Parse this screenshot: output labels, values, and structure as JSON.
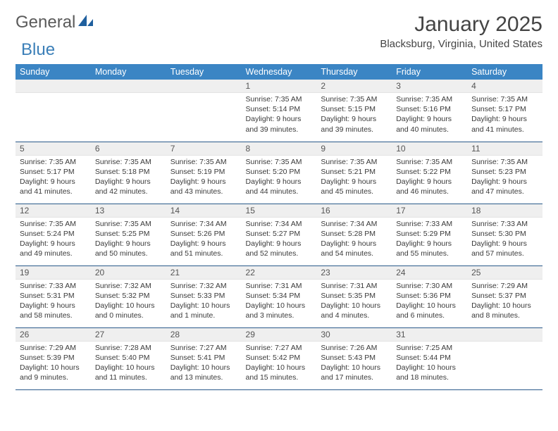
{
  "brand": {
    "word1": "General",
    "word2": "Blue",
    "logo_fill": "#1f5f9e"
  },
  "title": "January 2025",
  "location": "Blacksburg, Virginia, United States",
  "colors": {
    "header_bg": "#3b85c4",
    "header_text": "#ffffff",
    "daynum_bg": "#efefef",
    "row_border": "#2a5a8a",
    "body_text": "#3a3a3a"
  },
  "weekdays": [
    "Sunday",
    "Monday",
    "Tuesday",
    "Wednesday",
    "Thursday",
    "Friday",
    "Saturday"
  ],
  "weeks": [
    [
      null,
      null,
      null,
      {
        "n": "1",
        "sr": "7:35 AM",
        "ss": "5:14 PM",
        "dl": "9 hours and 39 minutes."
      },
      {
        "n": "2",
        "sr": "7:35 AM",
        "ss": "5:15 PM",
        "dl": "9 hours and 39 minutes."
      },
      {
        "n": "3",
        "sr": "7:35 AM",
        "ss": "5:16 PM",
        "dl": "9 hours and 40 minutes."
      },
      {
        "n": "4",
        "sr": "7:35 AM",
        "ss": "5:17 PM",
        "dl": "9 hours and 41 minutes."
      }
    ],
    [
      {
        "n": "5",
        "sr": "7:35 AM",
        "ss": "5:17 PM",
        "dl": "9 hours and 41 minutes."
      },
      {
        "n": "6",
        "sr": "7:35 AM",
        "ss": "5:18 PM",
        "dl": "9 hours and 42 minutes."
      },
      {
        "n": "7",
        "sr": "7:35 AM",
        "ss": "5:19 PM",
        "dl": "9 hours and 43 minutes."
      },
      {
        "n": "8",
        "sr": "7:35 AM",
        "ss": "5:20 PM",
        "dl": "9 hours and 44 minutes."
      },
      {
        "n": "9",
        "sr": "7:35 AM",
        "ss": "5:21 PM",
        "dl": "9 hours and 45 minutes."
      },
      {
        "n": "10",
        "sr": "7:35 AM",
        "ss": "5:22 PM",
        "dl": "9 hours and 46 minutes."
      },
      {
        "n": "11",
        "sr": "7:35 AM",
        "ss": "5:23 PM",
        "dl": "9 hours and 47 minutes."
      }
    ],
    [
      {
        "n": "12",
        "sr": "7:35 AM",
        "ss": "5:24 PM",
        "dl": "9 hours and 49 minutes."
      },
      {
        "n": "13",
        "sr": "7:35 AM",
        "ss": "5:25 PM",
        "dl": "9 hours and 50 minutes."
      },
      {
        "n": "14",
        "sr": "7:34 AM",
        "ss": "5:26 PM",
        "dl": "9 hours and 51 minutes."
      },
      {
        "n": "15",
        "sr": "7:34 AM",
        "ss": "5:27 PM",
        "dl": "9 hours and 52 minutes."
      },
      {
        "n": "16",
        "sr": "7:34 AM",
        "ss": "5:28 PM",
        "dl": "9 hours and 54 minutes."
      },
      {
        "n": "17",
        "sr": "7:33 AM",
        "ss": "5:29 PM",
        "dl": "9 hours and 55 minutes."
      },
      {
        "n": "18",
        "sr": "7:33 AM",
        "ss": "5:30 PM",
        "dl": "9 hours and 57 minutes."
      }
    ],
    [
      {
        "n": "19",
        "sr": "7:33 AM",
        "ss": "5:31 PM",
        "dl": "9 hours and 58 minutes."
      },
      {
        "n": "20",
        "sr": "7:32 AM",
        "ss": "5:32 PM",
        "dl": "10 hours and 0 minutes."
      },
      {
        "n": "21",
        "sr": "7:32 AM",
        "ss": "5:33 PM",
        "dl": "10 hours and 1 minute."
      },
      {
        "n": "22",
        "sr": "7:31 AM",
        "ss": "5:34 PM",
        "dl": "10 hours and 3 minutes."
      },
      {
        "n": "23",
        "sr": "7:31 AM",
        "ss": "5:35 PM",
        "dl": "10 hours and 4 minutes."
      },
      {
        "n": "24",
        "sr": "7:30 AM",
        "ss": "5:36 PM",
        "dl": "10 hours and 6 minutes."
      },
      {
        "n": "25",
        "sr": "7:29 AM",
        "ss": "5:37 PM",
        "dl": "10 hours and 8 minutes."
      }
    ],
    [
      {
        "n": "26",
        "sr": "7:29 AM",
        "ss": "5:39 PM",
        "dl": "10 hours and 9 minutes."
      },
      {
        "n": "27",
        "sr": "7:28 AM",
        "ss": "5:40 PM",
        "dl": "10 hours and 11 minutes."
      },
      {
        "n": "28",
        "sr": "7:27 AM",
        "ss": "5:41 PM",
        "dl": "10 hours and 13 minutes."
      },
      {
        "n": "29",
        "sr": "7:27 AM",
        "ss": "5:42 PM",
        "dl": "10 hours and 15 minutes."
      },
      {
        "n": "30",
        "sr": "7:26 AM",
        "ss": "5:43 PM",
        "dl": "10 hours and 17 minutes."
      },
      {
        "n": "31",
        "sr": "7:25 AM",
        "ss": "5:44 PM",
        "dl": "10 hours and 18 minutes."
      },
      null
    ]
  ],
  "labels": {
    "sunrise": "Sunrise:",
    "sunset": "Sunset:",
    "daylight": "Daylight:"
  }
}
